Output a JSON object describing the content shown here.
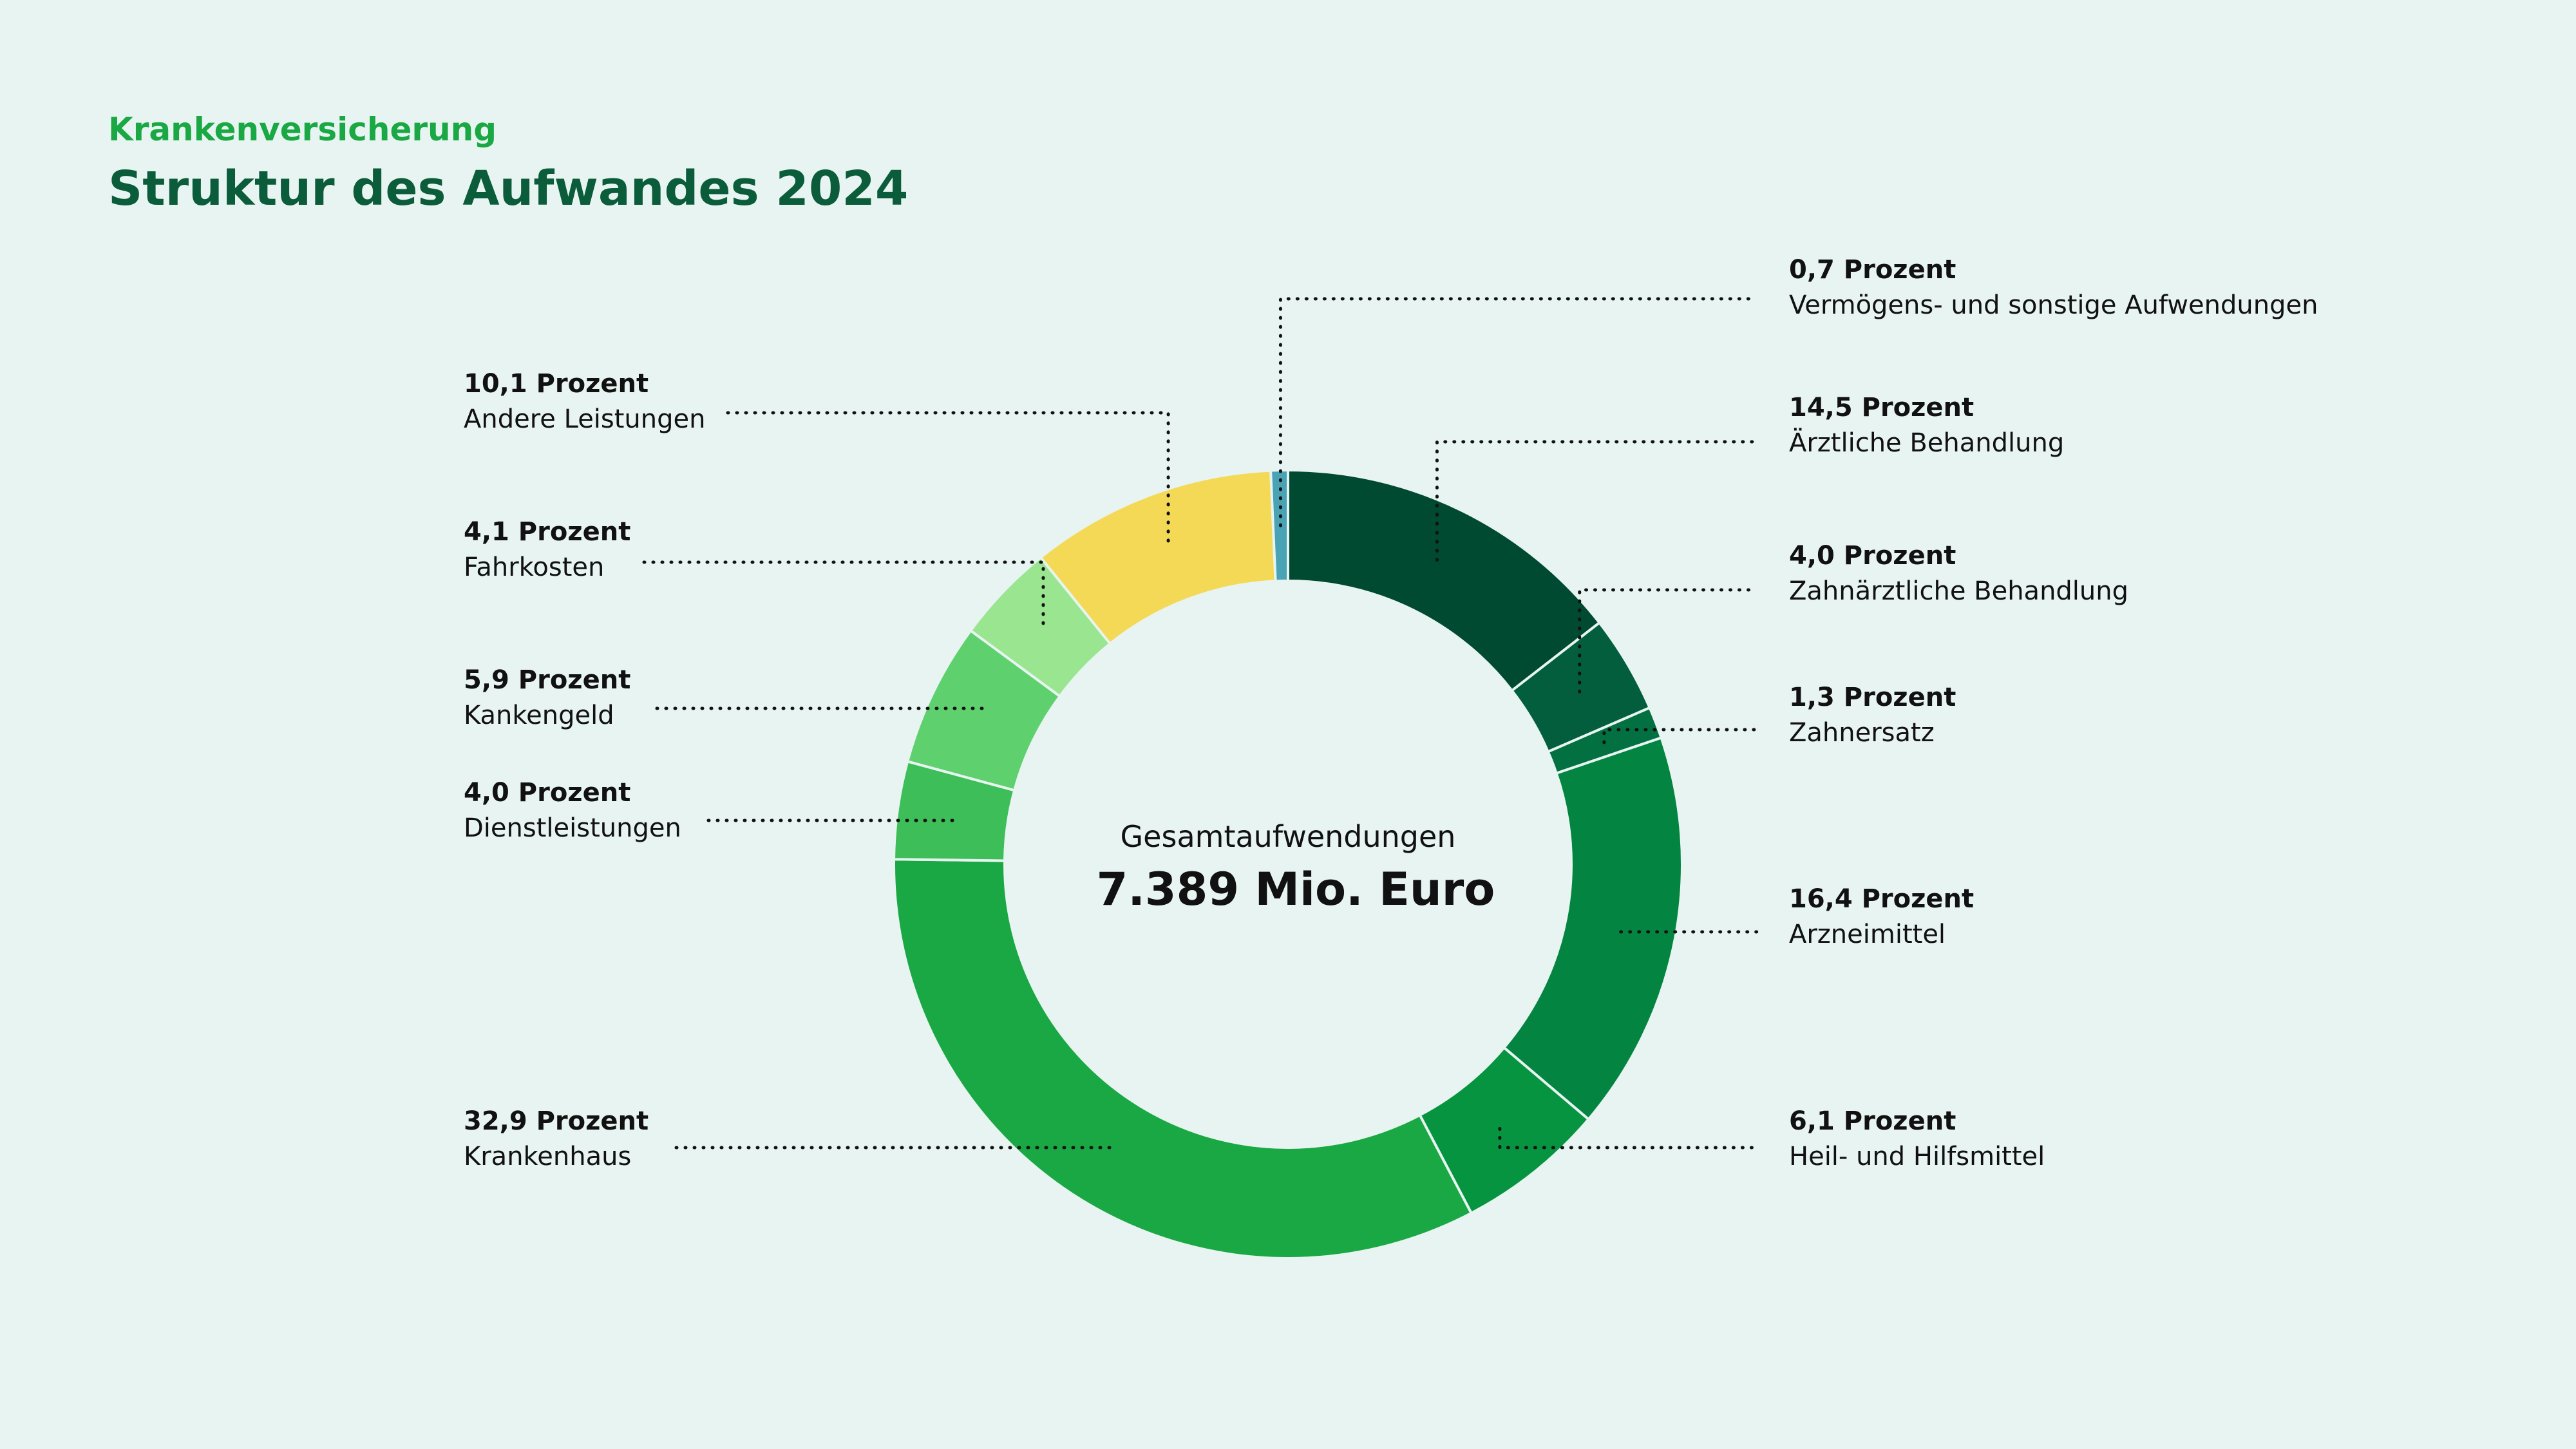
{
  "header": {
    "kicker": "Krankenversicherung",
    "title": "Struktur des Aufwandes 2024"
  },
  "center": {
    "caption": "Gesamtaufwendungen",
    "total": "7.389 Mio. Euro"
  },
  "chart_data": {
    "type": "pie",
    "title": "Struktur des Aufwandes 2024",
    "center_label": "Gesamtaufwendungen",
    "center_value": "7.389 Mio. Euro",
    "slices": [
      {
        "name": "Ärztliche Behandlung",
        "value": 14.5,
        "label": "14,5 Prozent",
        "color": "#014a32",
        "side": "right"
      },
      {
        "name": "Zahnärztliche Behandlung",
        "value": 4.0,
        "label": "4,0 Prozent",
        "color": "#035e3d",
        "side": "right"
      },
      {
        "name": "Zahnersatz",
        "value": 1.3,
        "label": "1,3 Prozent",
        "color": "#037042",
        "side": "right"
      },
      {
        "name": "Arzneimittel",
        "value": 16.4,
        "label": "16,4 Prozent",
        "color": "#038541",
        "side": "right"
      },
      {
        "name": "Heil- und Hilfsmittel",
        "value": 6.1,
        "label": "6,1 Prozent",
        "color": "#069440",
        "side": "right"
      },
      {
        "name": "Krankenhaus",
        "value": 32.9,
        "label": "32,9 Prozent",
        "color": "#1aa844",
        "side": "left"
      },
      {
        "name": "Dienstleistungen",
        "value": 4.0,
        "label": "4,0 Prozent",
        "color": "#3dbe59",
        "side": "left"
      },
      {
        "name": "Kankengeld",
        "value": 5.9,
        "label": "5,9 Prozent",
        "color": "#5fd06e",
        "side": "left"
      },
      {
        "name": "Fahrkosten",
        "value": 4.1,
        "label": "4,1 Prozent",
        "color": "#9ae690",
        "side": "left"
      },
      {
        "name": "Andere Leistungen",
        "value": 10.1,
        "label": "10,1 Prozent",
        "color": "#f4d957",
        "side": "left"
      },
      {
        "name": "Vermögens- und sonstige Aufwendungen",
        "value": 0.7,
        "label": "0,7 Prozent",
        "color": "#4aa3b5",
        "side": "right"
      }
    ]
  }
}
